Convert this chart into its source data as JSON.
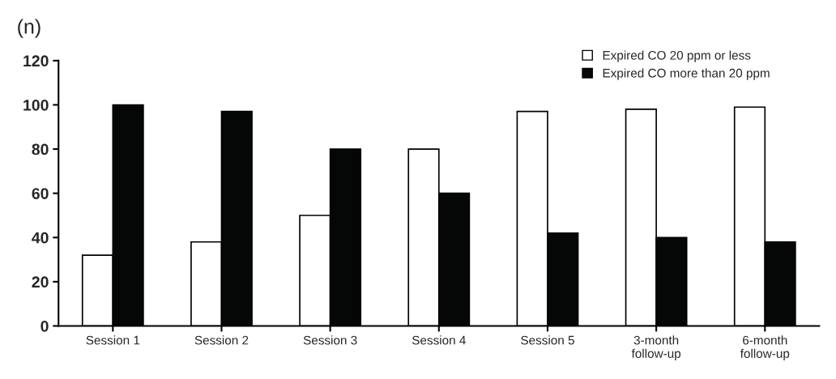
{
  "chart_data": {
    "type": "bar",
    "ylabel": "(n)",
    "categories": [
      "Session 1",
      "Session 2",
      "Session 3",
      "Session 4",
      "Session 5",
      "3-month\nfollow-up",
      "6-month\nfollow-up"
    ],
    "series": [
      {
        "name": "Expired CO 20 ppm or less",
        "color": "#ffffff",
        "values": [
          32,
          38,
          50,
          80,
          97,
          98,
          99
        ]
      },
      {
        "name": "Expired CO more than 20 ppm",
        "color": "#050706",
        "values": [
          100,
          97,
          80,
          60,
          42,
          40,
          38
        ]
      }
    ],
    "ylim": [
      0,
      120
    ],
    "yticks": [
      0,
      20,
      40,
      60,
      80,
      100,
      120
    ],
    "grid": false,
    "legend": "top right"
  }
}
